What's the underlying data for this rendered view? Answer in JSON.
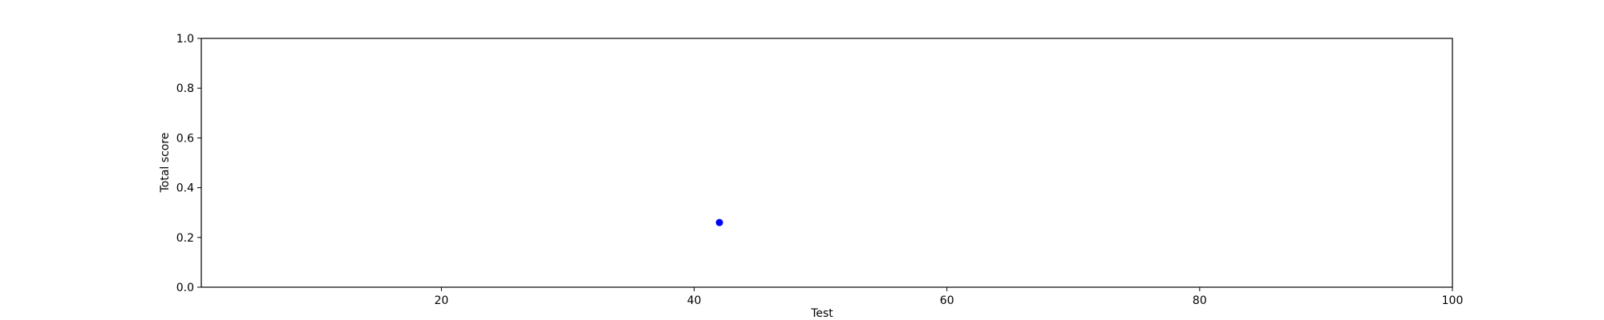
{
  "chart_data": {
    "type": "scatter",
    "xlabel": "Test",
    "ylabel": "Total score",
    "xlim": [
      1,
      100
    ],
    "ylim": [
      0.0,
      1.0
    ],
    "x_ticks": [
      20,
      40,
      60,
      80,
      100
    ],
    "x_tick_labels": [
      "20",
      "40",
      "60",
      "80",
      "100"
    ],
    "y_ticks": [
      0.0,
      0.2,
      0.4,
      0.6,
      0.8,
      1.0
    ],
    "y_tick_labels": [
      "0.0",
      "0.2",
      "0.4",
      "0.6",
      "0.8",
      "1.0"
    ],
    "grid": false,
    "series": [
      {
        "color": "#0000ff",
        "marker": "circle",
        "points": [
          {
            "x": 42,
            "y": 0.26
          }
        ]
      }
    ]
  }
}
